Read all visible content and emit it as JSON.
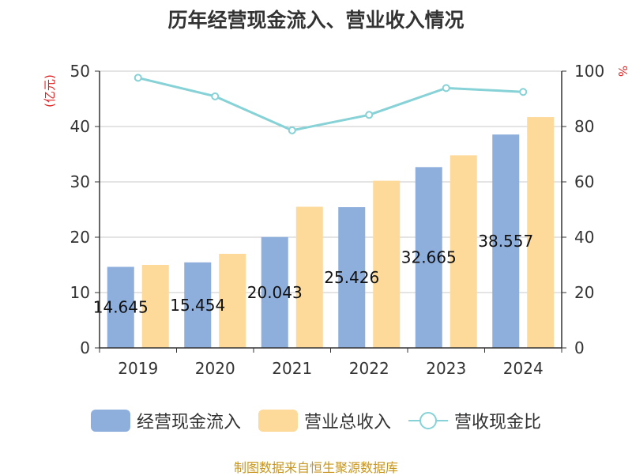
{
  "chart_data": {
    "type": "bar",
    "title": "历年经营现金流入、营业收入情况",
    "categories": [
      "2019",
      "2020",
      "2021",
      "2022",
      "2023",
      "2024"
    ],
    "series": [
      {
        "name": "经营现金流入",
        "axis": "left",
        "color": "#8eaedc",
        "values": [
          14.645,
          15.454,
          20.043,
          25.426,
          32.665,
          38.557
        ],
        "labels": [
          "14.645",
          "15.454",
          "20.043",
          "25.426",
          "32.665",
          "38.557"
        ]
      },
      {
        "name": "营业总收入",
        "axis": "left",
        "color": "#fdd99a",
        "values": [
          15.0,
          17.0,
          25.5,
          30.2,
          34.8,
          41.7
        ]
      },
      {
        "name": "营收现金比",
        "axis": "right",
        "type": "line",
        "color": "#86d2d6",
        "values": [
          97.6,
          90.9,
          78.6,
          84.2,
          93.9,
          92.5
        ]
      }
    ],
    "ylabel": "(亿元)",
    "ylim": [
      0,
      50
    ],
    "yticks": [
      "0",
      "10",
      "20",
      "30",
      "40",
      "50"
    ],
    "y2label": "%",
    "y2lim": [
      0,
      100
    ],
    "y2ticks": [
      "0",
      "20",
      "40",
      "60",
      "80",
      "100"
    ],
    "grid": true,
    "legend_position": "bottom"
  },
  "source": "制图数据来自恒生聚源数据库"
}
